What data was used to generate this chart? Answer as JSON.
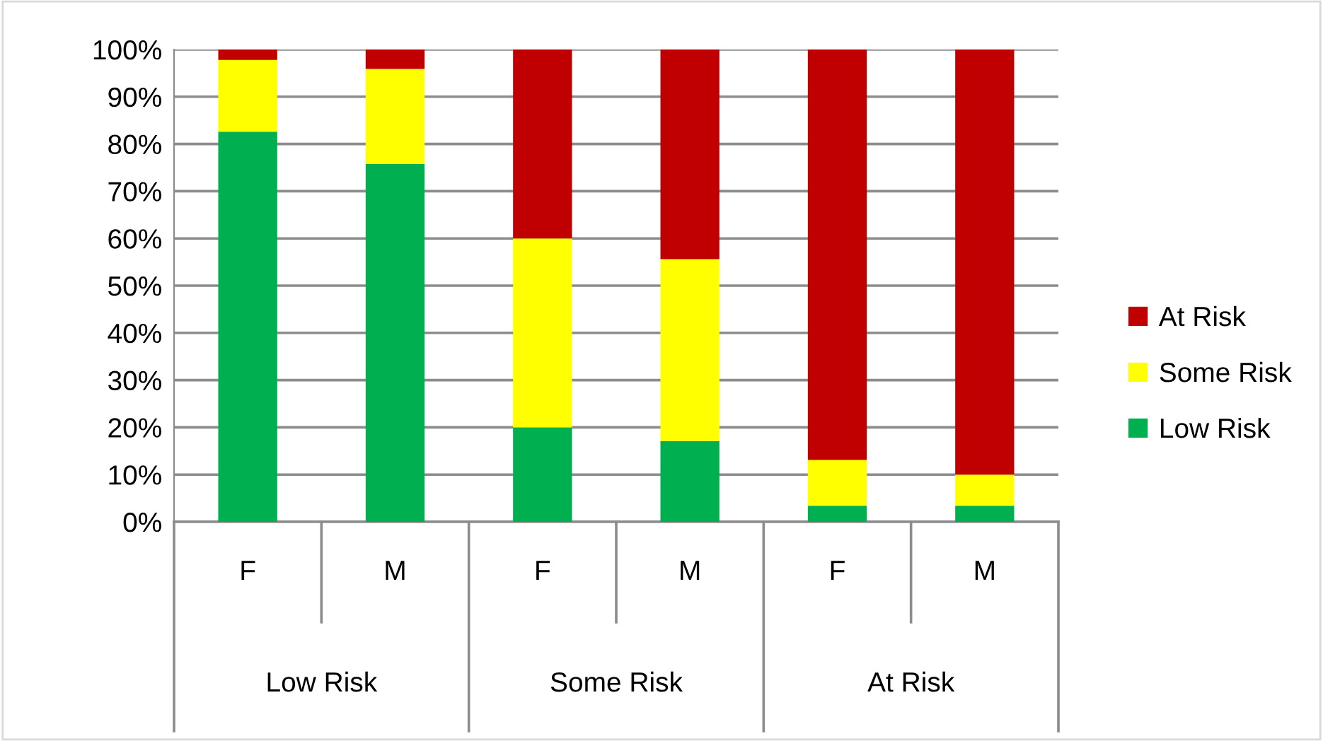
{
  "chart_data": {
    "type": "bar",
    "stacked": true,
    "categories": [
      "F",
      "M",
      "F",
      "M",
      "F",
      "M"
    ],
    "annotations": [
      "Low Risk",
      "Some Risk",
      "At Risk"
    ],
    "series": [
      {
        "name": "Low Risk",
        "color": "#00b050",
        "values": [
          82.6,
          75.8,
          20,
          17.1,
          3.4,
          3.4
        ]
      },
      {
        "name": "Some Risk",
        "color": "#ffff00",
        "values": [
          15.2,
          20.1,
          40,
          38.5,
          9.7,
          6.6
        ]
      },
      {
        "name": "At Risk",
        "color": "#c00000",
        "values": [
          2.2,
          4.1,
          40,
          44.4,
          86.9,
          90
        ]
      }
    ],
    "ylim": [
      0,
      100
    ],
    "yticks": [
      {
        "value": 0,
        "label": "0%"
      },
      {
        "value": 10,
        "label": "10%"
      },
      {
        "value": 20,
        "label": "20%"
      },
      {
        "value": 30,
        "label": "30%"
      },
      {
        "value": 40,
        "label": "40%"
      },
      {
        "value": 50,
        "label": "50%"
      },
      {
        "value": 60,
        "label": "60%"
      },
      {
        "value": 70,
        "label": "70%"
      },
      {
        "value": 80,
        "label": "80%"
      },
      {
        "value": 90,
        "label": "90%"
      },
      {
        "value": 100,
        "label": "100%"
      }
    ],
    "grid": "y",
    "legend": "right"
  }
}
